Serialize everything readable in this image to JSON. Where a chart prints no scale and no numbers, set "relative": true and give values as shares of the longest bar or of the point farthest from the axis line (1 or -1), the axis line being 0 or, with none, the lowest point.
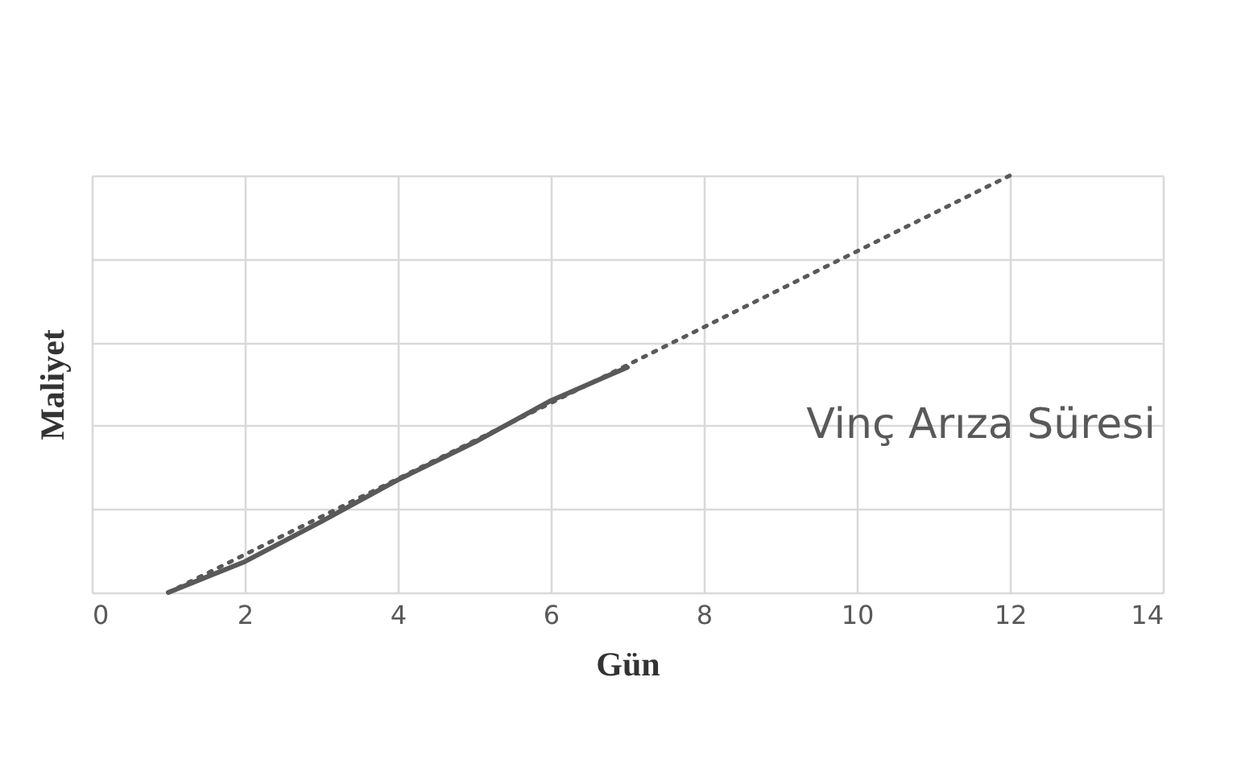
{
  "chart_data": {
    "type": "line",
    "xlabel": "Gün",
    "ylabel": "Maliyet",
    "relative": true,
    "xlim": [
      0,
      14
    ],
    "xticks": [
      0,
      2,
      4,
      6,
      8,
      10,
      12,
      14
    ],
    "grid": true,
    "annotations": [
      "Vinç Arıza Süresi"
    ],
    "series": [
      {
        "color": "#595959",
        "line_style": "solid",
        "x": [
          1,
          2,
          3,
          4,
          5,
          6,
          7
        ],
        "values": [
          0,
          0.074,
          0.17,
          0.27,
          0.36,
          0.46,
          0.54
        ]
      },
      {
        "color": "#595959",
        "line_style": "dotted",
        "x": [
          1,
          12
        ],
        "values": [
          0,
          1
        ]
      }
    ]
  }
}
